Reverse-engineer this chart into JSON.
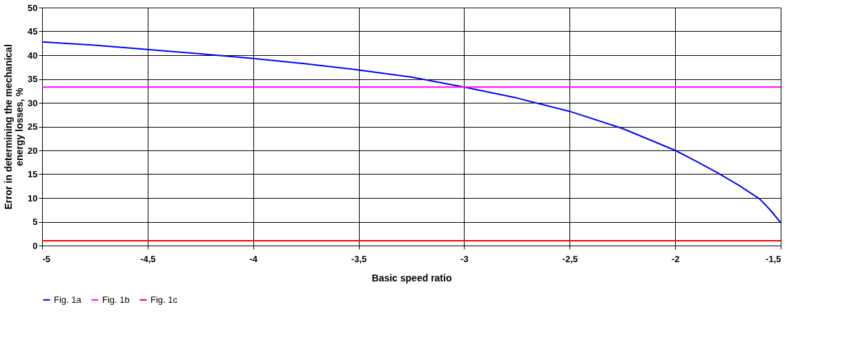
{
  "chart_data": {
    "type": "line",
    "xlabel": "Basic speed ratio",
    "ylabel": "Error in determining the mechanical energy losses, %",
    "xlim": [
      -5,
      -1.5
    ],
    "ylim": [
      0,
      50
    ],
    "xticks": [
      -5,
      {
        "value": -4.5,
        "label": "-4,5"
      },
      -4,
      {
        "value": -3.5,
        "label": "-3,5"
      },
      -3,
      {
        "value": -2.5,
        "label": "-2,5"
      },
      -2,
      {
        "value": -1.5,
        "label": "-1,5"
      }
    ],
    "yticks": [
      0,
      5,
      10,
      15,
      20,
      25,
      30,
      35,
      40,
      45,
      50
    ],
    "grid": true,
    "legend": "bottom",
    "marker": "none",
    "line_style": "solid",
    "series": [
      {
        "name": "Fig. 1a",
        "color": "#0000ff",
        "x": [
          -5,
          -4.75,
          -4.5,
          -4.25,
          -4,
          -3.75,
          -3.5,
          -3.25,
          -3,
          -2.75,
          -2.5,
          -2.25,
          -2,
          -1.9,
          -1.8,
          -1.7,
          -1.6,
          -1.55,
          -1.5
        ],
        "values": [
          42.8,
          42.1,
          41.2,
          40.3,
          39.3,
          38.2,
          36.9,
          35.4,
          33.3,
          31.0,
          28.2,
          24.6,
          20.0,
          17.7,
          15.3,
          12.7,
          9.8,
          7.5,
          4.8
        ]
      },
      {
        "name": "Fig. 1b",
        "color": "#ff00ff",
        "x": [
          -5,
          -1.5
        ],
        "values": [
          33.3,
          33.3
        ]
      },
      {
        "name": "Fig. 1c",
        "color": "#ff0000",
        "x": [
          -5,
          -1.5
        ],
        "values": [
          1,
          1
        ]
      }
    ]
  }
}
